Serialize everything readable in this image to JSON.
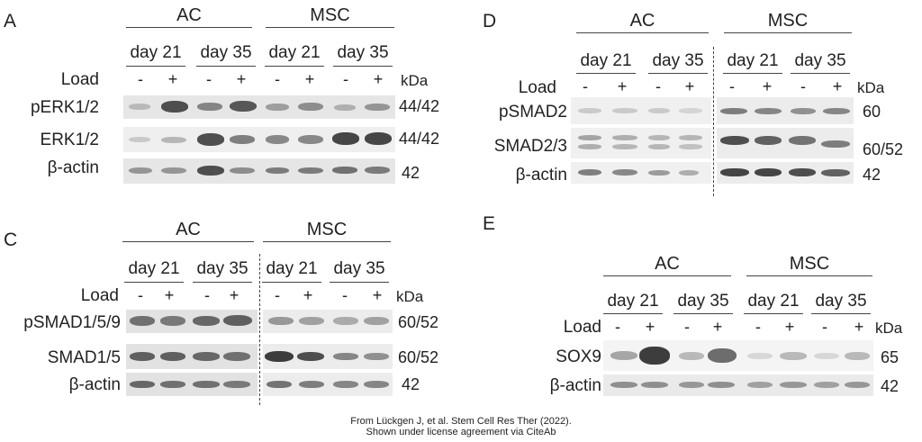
{
  "panels": {
    "A": {
      "letter": "A",
      "groups": [
        "AC",
        "MSC"
      ],
      "days": [
        "day 21",
        "day 35",
        "day 21",
        "day 35"
      ],
      "load_label": "Load",
      "signs": [
        "-",
        "+",
        "-",
        "+",
        "-",
        "+",
        "-",
        "+"
      ],
      "kda_label": "kDa",
      "rows": [
        {
          "label": "pERK1/2",
          "mw": "44/42"
        },
        {
          "label": "ERK1/2",
          "mw": "44/42"
        },
        {
          "label": "β-actin",
          "mw": "42"
        }
      ]
    },
    "D": {
      "letter": "D",
      "groups": [
        "AC",
        "MSC"
      ],
      "days": [
        "day 21",
        "day 35",
        "day 21",
        "day 35"
      ],
      "load_label": "Load",
      "signs": [
        "-",
        "+",
        "-",
        "+",
        "-",
        "+",
        "-",
        "+"
      ],
      "kda_label": "kDa",
      "rows": [
        {
          "label": "pSMAD2",
          "mw": "60"
        },
        {
          "label": "SMAD2/3",
          "mw": "60/52"
        },
        {
          "label": "β-actin",
          "mw": "42"
        }
      ]
    },
    "C": {
      "letter": "C",
      "groups": [
        "AC",
        "MSC"
      ],
      "days": [
        "day 21",
        "day 35",
        "day 21",
        "day 35"
      ],
      "load_label": "Load",
      "signs": [
        "-",
        "+",
        "-",
        "+",
        "-",
        "+",
        "-",
        "+"
      ],
      "kda_label": "kDa",
      "rows": [
        {
          "label": "pSMAD1/5/9",
          "mw": "60/52"
        },
        {
          "label": "SMAD1/5",
          "mw": "60/52"
        },
        {
          "label": "β-actin",
          "mw": "42"
        }
      ]
    },
    "E": {
      "letter": "E",
      "groups": [
        "AC",
        "MSC"
      ],
      "days": [
        "day 21",
        "day 35",
        "day 21",
        "day 35"
      ],
      "load_label": "Load",
      "signs": [
        "-",
        "+",
        "-",
        "+",
        "-",
        "+",
        "-",
        "+"
      ],
      "kda_label": "kDa",
      "rows": [
        {
          "label": "SOX9",
          "mw": "65"
        },
        {
          "label": "β-actin",
          "mw": "42"
        }
      ]
    }
  },
  "citation": {
    "line1": "From Lückgen J, et al. Stem Cell Res Ther (2022).",
    "line2": "Shown under license agreement via CiteAb"
  }
}
